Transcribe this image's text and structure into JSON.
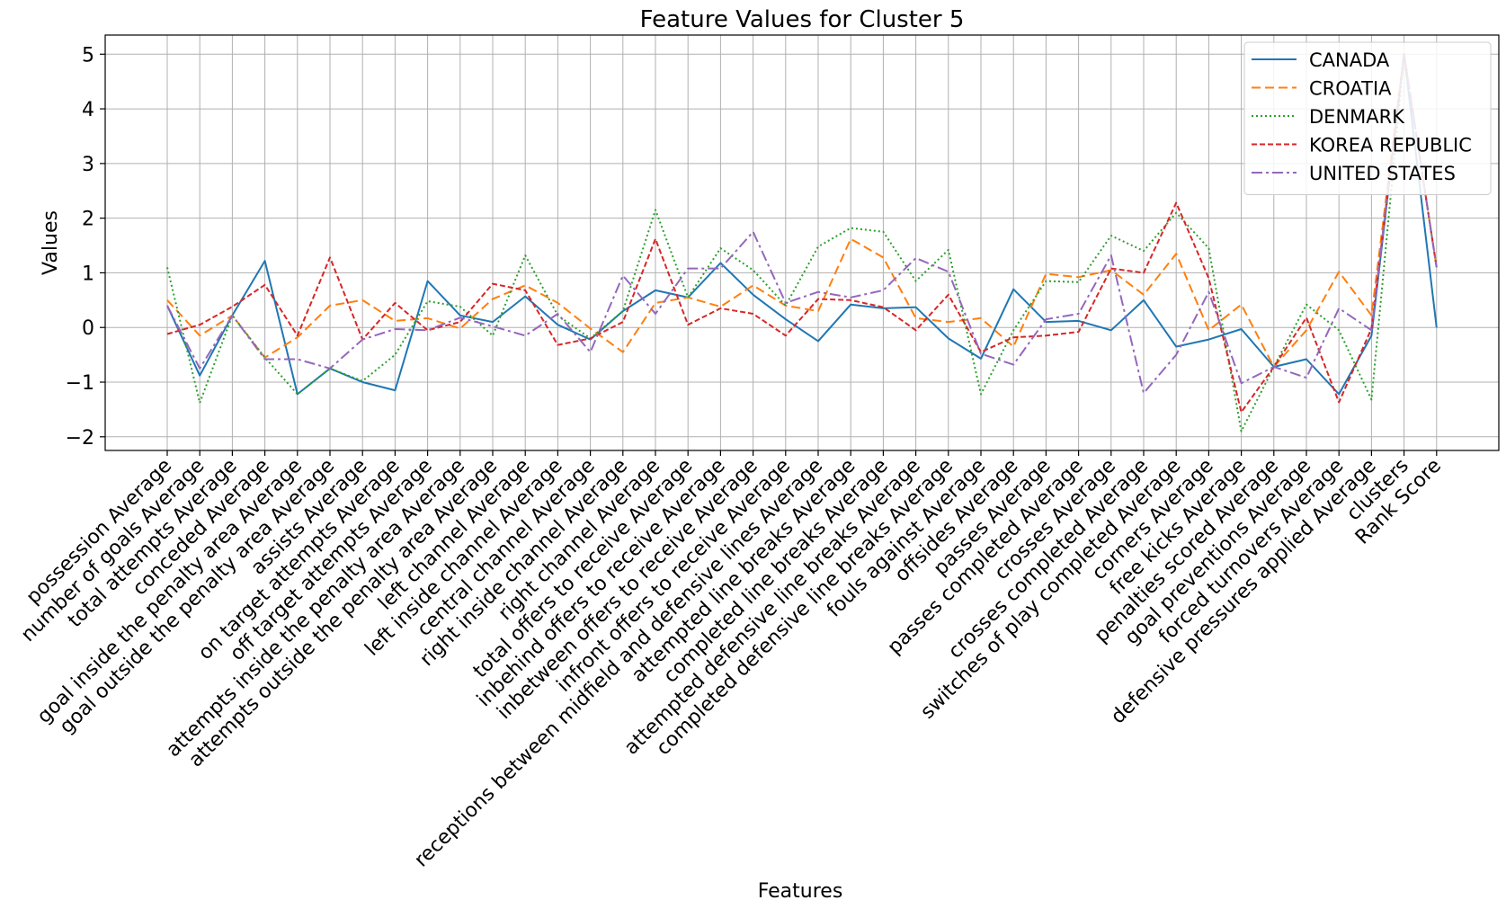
{
  "chart_data": {
    "type": "line",
    "title": "Feature Values for Cluster 5",
    "xlabel": "Features",
    "ylabel": "Values",
    "ylim": [
      -2.25,
      5.35
    ],
    "yticks": [
      -2,
      -1,
      0,
      1,
      2,
      3,
      4,
      5
    ],
    "ytick_labels": [
      "−2",
      "−1",
      "0",
      "1",
      "2",
      "3",
      "4",
      "5"
    ],
    "grid": true,
    "legend_position": "top-right",
    "categories": [
      "possession Average",
      "number of goals Average",
      "total attempts Average",
      "conceded Average",
      "goal inside the penalty area Average",
      "goal outside the penalty area Average",
      "assists Average",
      "on target attempts Average",
      "off target attempts Average",
      "attempts inside the penalty area  Average",
      "attempts outside the penalty area  Average",
      "left channel Average",
      "left inside channel Average",
      "central channel Average",
      "right inside channel Average",
      "right channel Average",
      "total offers to receive Average",
      "inbehind offers to receive Average",
      "inbetween offers to receive Average",
      "infront offers to receive Average",
      "receptions between midfield and defensive lines Average",
      "attempted line breaks Average",
      "completed line breaks Average",
      "attempted defensive line breaks Average",
      "completed defensive line breaks Average",
      "fouls against Average",
      "offsides Average",
      "passes Average",
      "passes completed Average",
      "crosses Average",
      "crosses completed Average",
      "switches of play completed Average",
      "corners Average",
      "free kicks Average",
      "penalties scored Average",
      "goal preventions Average",
      "forced turnovers Average",
      "defensive pressures applied Average",
      "clusters",
      "Rank Score"
    ],
    "series": [
      {
        "name": "CANADA",
        "color": "#1f77b4",
        "dash": "solid",
        "values": [
          0.4,
          -0.88,
          0.22,
          1.22,
          -1.22,
          -0.75,
          -1.0,
          -1.15,
          0.85,
          0.22,
          0.1,
          0.57,
          0.05,
          -0.22,
          0.3,
          0.68,
          0.55,
          1.18,
          0.6,
          0.15,
          -0.25,
          0.42,
          0.35,
          0.37,
          -0.2,
          -0.57,
          0.7,
          0.1,
          0.12,
          -0.05,
          0.5,
          -0.35,
          -0.22,
          -0.03,
          -0.72,
          -0.58,
          -1.22,
          -0.15,
          5.0,
          0.0
        ]
      },
      {
        "name": "CROATIA",
        "color": "#ff7f0e",
        "dash": "dashed",
        "values": [
          0.5,
          -0.15,
          0.22,
          -0.55,
          -0.18,
          0.4,
          0.5,
          0.12,
          0.17,
          -0.02,
          0.52,
          0.77,
          0.45,
          -0.02,
          -0.45,
          0.45,
          0.55,
          0.38,
          0.77,
          0.4,
          0.3,
          1.62,
          1.28,
          0.17,
          0.1,
          0.17,
          -0.35,
          0.98,
          0.92,
          1.05,
          0.6,
          1.35,
          -0.05,
          0.42,
          -0.72,
          -0.05,
          1.02,
          0.22,
          5.0,
          1.1
        ]
      },
      {
        "name": "DENMARK",
        "color": "#2ca02c",
        "dash": "dotted",
        "values": [
          1.1,
          -1.38,
          0.22,
          -0.55,
          -1.22,
          -0.75,
          -0.98,
          -0.5,
          0.48,
          0.38,
          -0.15,
          1.32,
          0.22,
          -0.2,
          0.3,
          2.15,
          0.55,
          1.45,
          1.05,
          0.4,
          1.48,
          1.82,
          1.75,
          0.85,
          1.42,
          -1.22,
          -0.05,
          0.85,
          0.83,
          1.68,
          1.4,
          2.1,
          1.45,
          -1.9,
          -0.72,
          0.42,
          -0.05,
          -1.32,
          5.0,
          1.1
        ]
      },
      {
        "name": "KOREA REPUBLIC",
        "color": "#d62728",
        "dash": "densely-dashed",
        "values": [
          -0.12,
          0.05,
          0.38,
          0.78,
          -0.15,
          1.28,
          -0.22,
          0.45,
          -0.05,
          0.1,
          0.8,
          0.68,
          -0.32,
          -0.2,
          0.1,
          1.62,
          0.05,
          0.35,
          0.25,
          -0.15,
          0.52,
          0.5,
          0.37,
          -0.05,
          0.6,
          -0.45,
          -0.18,
          -0.15,
          -0.08,
          1.08,
          1.0,
          2.28,
          0.9,
          -1.55,
          -0.72,
          0.18,
          -1.37,
          -0.02,
          5.0,
          1.1
        ]
      },
      {
        "name": "UNITED STATES",
        "color": "#9467bd",
        "dash": "dashdot",
        "values": [
          0.4,
          -0.75,
          0.22,
          -0.58,
          -0.58,
          -0.75,
          -0.22,
          -0.03,
          -0.05,
          0.18,
          0.02,
          -0.15,
          0.25,
          -0.45,
          0.95,
          0.25,
          1.08,
          1.08,
          1.75,
          0.45,
          0.65,
          0.55,
          0.68,
          1.27,
          1.02,
          -0.48,
          -0.68,
          0.15,
          0.25,
          1.32,
          -1.2,
          -0.5,
          0.65,
          -1.02,
          -0.72,
          -0.92,
          0.35,
          -0.05,
          5.0,
          1.1
        ]
      }
    ]
  }
}
